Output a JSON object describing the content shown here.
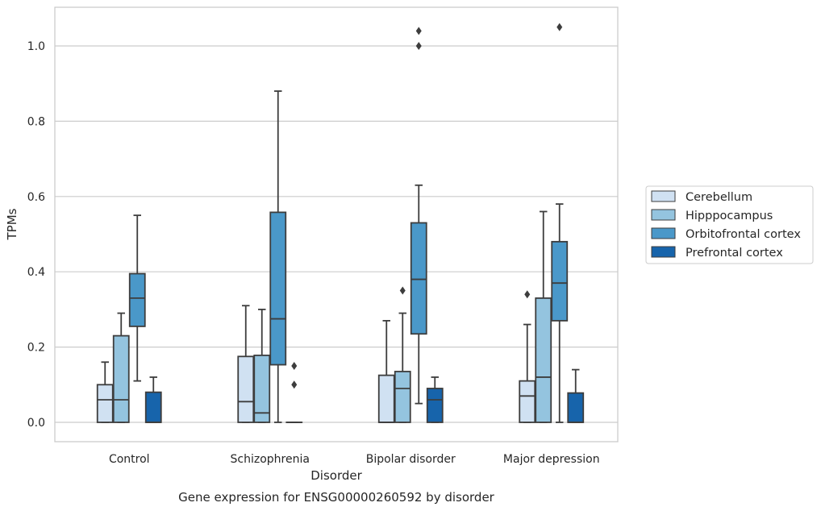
{
  "chart_data": {
    "type": "boxplot",
    "caption": "Gene expression for ENSG00000260592 by disorder",
    "xlabel": "Disorder",
    "ylabel": "TPMs",
    "ylim": [
      -0.05,
      1.1
    ],
    "yticks": [
      "0.0",
      "0.2",
      "0.4",
      "0.6",
      "0.8",
      "1.0"
    ],
    "grid": "horizontal",
    "legend_position": "right",
    "categories": [
      "Control",
      "Schizophrenia",
      "Bipolar disorder",
      "Major depression"
    ],
    "series": [
      {
        "name": "Cerebellum",
        "color": "#d0e1f2",
        "boxes": [
          {
            "min": 0.0,
            "q1": 0.0,
            "median": 0.06,
            "q3": 0.1,
            "max": 0.16,
            "outliers": []
          },
          {
            "min": 0.0,
            "q1": 0.0,
            "median": 0.055,
            "q3": 0.175,
            "max": 0.31,
            "outliers": []
          },
          {
            "min": 0.0,
            "q1": 0.0,
            "median": 0.0,
            "q3": 0.125,
            "max": 0.27,
            "outliers": []
          },
          {
            "min": 0.0,
            "q1": 0.0,
            "median": 0.07,
            "q3": 0.11,
            "max": 0.26,
            "outliers": [
              0.34
            ]
          }
        ]
      },
      {
        "name": "Hipppocampus",
        "color": "#94c4df",
        "boxes": [
          {
            "min": 0.0,
            "q1": 0.0,
            "median": 0.06,
            "q3": 0.23,
            "max": 0.29,
            "outliers": []
          },
          {
            "min": 0.0,
            "q1": 0.0,
            "median": 0.025,
            "q3": 0.178,
            "max": 0.3,
            "outliers": []
          },
          {
            "min": 0.0,
            "q1": 0.0,
            "median": 0.09,
            "q3": 0.135,
            "max": 0.29,
            "outliers": [
              0.35
            ]
          },
          {
            "min": 0.0,
            "q1": 0.0,
            "median": 0.12,
            "q3": 0.33,
            "max": 0.56,
            "outliers": []
          }
        ]
      },
      {
        "name": "Orbitofrontal cortex",
        "color": "#4a98c9",
        "boxes": [
          {
            "min": 0.11,
            "q1": 0.255,
            "median": 0.33,
            "q3": 0.395,
            "max": 0.55,
            "outliers": []
          },
          {
            "min": 0.0,
            "q1": 0.153,
            "median": 0.275,
            "q3": 0.558,
            "max": 0.88,
            "outliers": []
          },
          {
            "min": 0.05,
            "q1": 0.235,
            "median": 0.38,
            "q3": 0.53,
            "max": 0.63,
            "outliers": [
              1.0,
              1.04
            ]
          },
          {
            "min": 0.0,
            "q1": 0.27,
            "median": 0.37,
            "q3": 0.48,
            "max": 0.58,
            "outliers": [
              1.05
            ]
          }
        ]
      },
      {
        "name": "Prefrontal cortex",
        "color": "#1764ab",
        "boxes": [
          {
            "min": 0.0,
            "q1": 0.0,
            "median": 0.0,
            "q3": 0.08,
            "max": 0.12,
            "outliers": []
          },
          {
            "min": 0.0,
            "q1": 0.0,
            "median": 0.0,
            "q3": 0.0,
            "max": 0.0,
            "outliers": [
              0.1,
              0.15
            ]
          },
          {
            "min": 0.0,
            "q1": 0.0,
            "median": 0.06,
            "q3": 0.09,
            "max": 0.12,
            "outliers": []
          },
          {
            "min": 0.0,
            "q1": 0.0,
            "median": 0.0,
            "q3": 0.078,
            "max": 0.14,
            "outliers": []
          }
        ]
      }
    ]
  }
}
